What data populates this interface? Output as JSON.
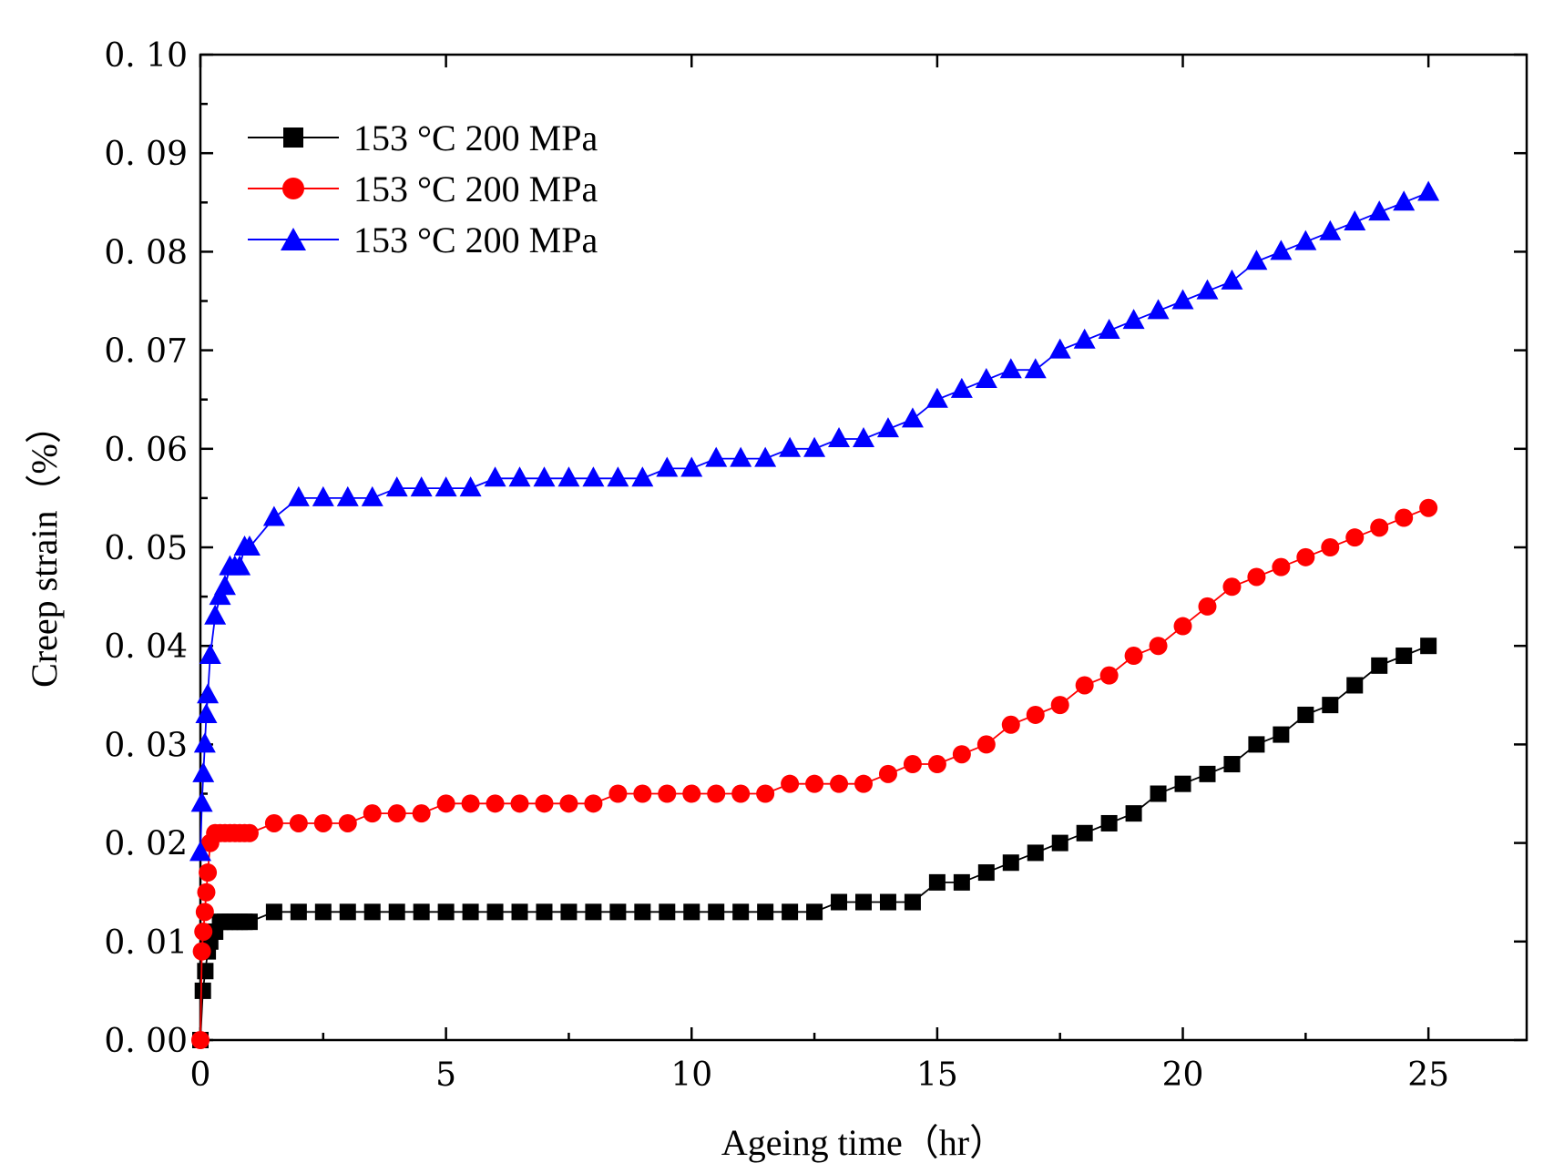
{
  "chart_data": {
    "type": "line",
    "xlabel": "Ageing time（hr）",
    "ylabel": "Creep strain（%）",
    "xlim": [
      0,
      27
    ],
    "ylim": [
      0,
      0.1
    ],
    "x_ticks": [
      "0",
      "5",
      "10",
      "15",
      "20",
      "25"
    ],
    "y_ticks": [
      "0. 00",
      "0. 01",
      "0. 02",
      "0. 03",
      "0. 04",
      "0. 05",
      "0. 06",
      "0. 07",
      "0. 08",
      "0. 09",
      "0. 10"
    ],
    "legend_position": "top-left",
    "grid": false,
    "series": [
      {
        "name": "153 °C 200 MPa",
        "color": "#000000",
        "marker": "square",
        "x": [
          0,
          0.05,
          0.1,
          0.15,
          0.2,
          0.3,
          0.4,
          0.5,
          0.6,
          0.7,
          0.8,
          0.9,
          1.0,
          1.5,
          2,
          2.5,
          3,
          3.5,
          4,
          4.5,
          5,
          5.5,
          6,
          6.5,
          7,
          7.5,
          8,
          8.5,
          9,
          9.5,
          10,
          10.5,
          11,
          11.5,
          12,
          12.5,
          13,
          13.5,
          14,
          14.5,
          15,
          15.5,
          16,
          16.5,
          17,
          17.5,
          18,
          18.5,
          19,
          19.5,
          20,
          20.5,
          21,
          21.5,
          22,
          22.5,
          23,
          23.5,
          24,
          24.5,
          25
        ],
        "y": [
          0.0,
          0.005,
          0.007,
          0.009,
          0.01,
          0.011,
          0.012,
          0.012,
          0.012,
          0.012,
          0.012,
          0.012,
          0.012,
          0.013,
          0.013,
          0.013,
          0.013,
          0.013,
          0.013,
          0.013,
          0.013,
          0.013,
          0.013,
          0.013,
          0.013,
          0.013,
          0.013,
          0.013,
          0.013,
          0.013,
          0.013,
          0.013,
          0.013,
          0.013,
          0.013,
          0.013,
          0.014,
          0.014,
          0.014,
          0.014,
          0.016,
          0.016,
          0.017,
          0.018,
          0.019,
          0.02,
          0.021,
          0.022,
          0.023,
          0.025,
          0.026,
          0.027,
          0.028,
          0.03,
          0.031,
          0.033,
          0.034,
          0.036,
          0.038,
          0.039,
          0.04
        ]
      },
      {
        "name": "153 °C 200 MPa",
        "color": "#ff0000",
        "marker": "circle",
        "x": [
          0,
          0.03,
          0.06,
          0.09,
          0.12,
          0.15,
          0.2,
          0.3,
          0.4,
          0.5,
          0.6,
          0.7,
          0.8,
          0.9,
          1.0,
          1.5,
          2,
          2.5,
          3,
          3.5,
          4,
          4.5,
          5,
          5.5,
          6,
          6.5,
          7,
          7.5,
          8,
          8.5,
          9,
          9.5,
          10,
          10.5,
          11,
          11.5,
          12,
          12.5,
          13,
          13.5,
          14,
          14.5,
          15,
          15.5,
          16,
          16.5,
          17,
          17.5,
          18,
          18.5,
          19,
          19.5,
          20,
          20.5,
          21,
          21.5,
          22,
          22.5,
          23,
          23.5,
          24,
          24.5,
          25
        ],
        "y": [
          0.0,
          0.009,
          0.011,
          0.013,
          0.015,
          0.017,
          0.02,
          0.021,
          0.021,
          0.021,
          0.021,
          0.021,
          0.021,
          0.021,
          0.021,
          0.022,
          0.022,
          0.022,
          0.022,
          0.023,
          0.023,
          0.023,
          0.024,
          0.024,
          0.024,
          0.024,
          0.024,
          0.024,
          0.024,
          0.025,
          0.025,
          0.025,
          0.025,
          0.025,
          0.025,
          0.025,
          0.026,
          0.026,
          0.026,
          0.026,
          0.027,
          0.028,
          0.028,
          0.029,
          0.03,
          0.032,
          0.033,
          0.034,
          0.036,
          0.037,
          0.039,
          0.04,
          0.042,
          0.044,
          0.046,
          0.047,
          0.048,
          0.049,
          0.05,
          0.051,
          0.052,
          0.053,
          0.054
        ]
      },
      {
        "name": "153 °C 200 MPa",
        "color": "#0000ff",
        "marker": "triangle",
        "x": [
          0,
          0.03,
          0.06,
          0.09,
          0.12,
          0.15,
          0.2,
          0.3,
          0.4,
          0.5,
          0.6,
          0.7,
          0.8,
          0.9,
          1.0,
          1.5,
          2,
          2.5,
          3,
          3.5,
          4,
          4.5,
          5,
          5.5,
          6,
          6.5,
          7,
          7.5,
          8,
          8.5,
          9,
          9.5,
          10,
          10.5,
          11,
          11.5,
          12,
          12.5,
          13,
          13.5,
          14,
          14.5,
          15,
          15.5,
          16,
          16.5,
          17,
          17.5,
          18,
          18.5,
          19,
          19.5,
          20,
          20.5,
          21,
          21.5,
          22,
          22.5,
          23,
          23.5,
          24,
          24.5,
          25
        ],
        "y": [
          0.019,
          0.024,
          0.027,
          0.03,
          0.033,
          0.035,
          0.039,
          0.043,
          0.045,
          0.046,
          0.048,
          0.048,
          0.048,
          0.05,
          0.05,
          0.053,
          0.055,
          0.055,
          0.055,
          0.055,
          0.056,
          0.056,
          0.056,
          0.056,
          0.057,
          0.057,
          0.057,
          0.057,
          0.057,
          0.057,
          0.057,
          0.058,
          0.058,
          0.059,
          0.059,
          0.059,
          0.06,
          0.06,
          0.061,
          0.061,
          0.062,
          0.063,
          0.065,
          0.066,
          0.067,
          0.068,
          0.068,
          0.07,
          0.071,
          0.072,
          0.073,
          0.074,
          0.075,
          0.076,
          0.077,
          0.079,
          0.08,
          0.081,
          0.082,
          0.083,
          0.084,
          0.085,
          0.086
        ]
      }
    ]
  }
}
